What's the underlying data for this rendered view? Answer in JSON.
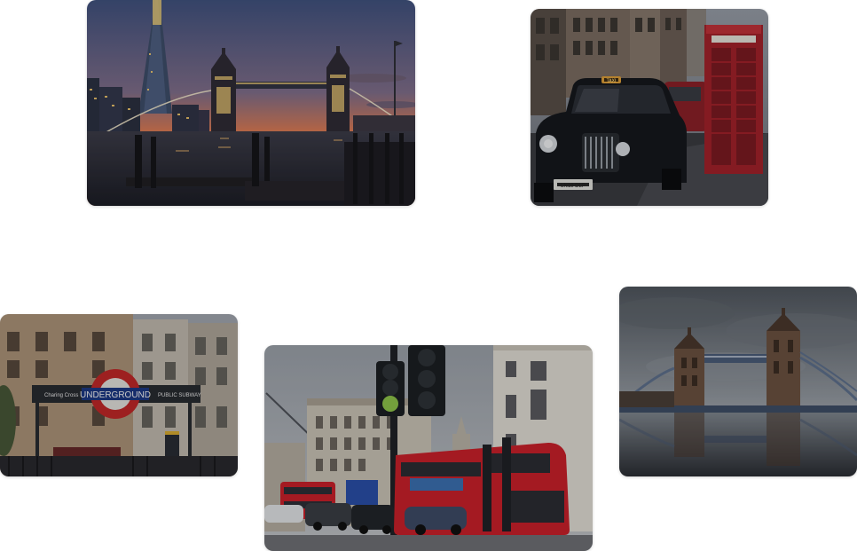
{
  "gallery": {
    "photos": [
      {
        "id": "tower-bridge-night",
        "icon": "photo-tower-bridge-night",
        "signs": []
      },
      {
        "id": "taxi-phone-box",
        "icon": "photo-taxi-phone-box",
        "signs": [
          "TAXI",
          "LN18 DLP"
        ]
      },
      {
        "id": "underground",
        "icon": "photo-underground-station",
        "signs": [
          "Charing Cross",
          "UNDERGROUND",
          "PUBLIC SUBWAY"
        ]
      },
      {
        "id": "buses-traffic",
        "icon": "photo-london-buses-traffic",
        "signs": []
      },
      {
        "id": "tower-bridge-day",
        "icon": "photo-tower-bridge-day",
        "signs": []
      }
    ]
  },
  "colors": {
    "sunset_orange": "#e8794b",
    "dusk_blue": "#4a5a86",
    "taxi_black": "#16181d",
    "phone_box_red": "#b3222a",
    "bus_red": "#c8202a",
    "roundel_red": "#c92a2a",
    "stone": "#c9b39a",
    "sky_grey": "#8d939b"
  }
}
